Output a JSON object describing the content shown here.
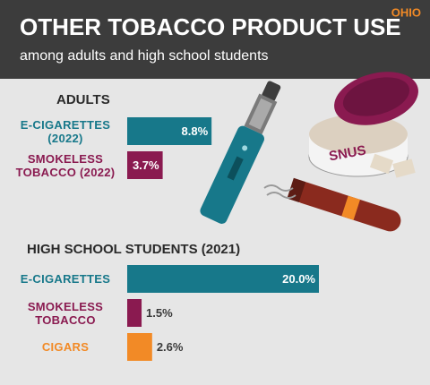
{
  "header": {
    "title": "OTHER TOBACCO PRODUCT USE",
    "subtitle": "among adults and high school students",
    "region": "OHIO"
  },
  "illustration": {
    "can_label": "SNUS"
  },
  "chart_data": [
    {
      "type": "bar",
      "orientation": "horizontal",
      "title": "ADULTS",
      "categories": [
        "E-CIGARETTES (2022)",
        "SMOKELESS TOBACCO (2022)"
      ],
      "values": [
        8.8,
        3.7
      ],
      "value_labels": [
        "8.8%",
        "3.7%"
      ],
      "colors": [
        "#17788a",
        "#8a1a50"
      ]
    },
    {
      "type": "bar",
      "orientation": "horizontal",
      "title": "HIGH SCHOOL STUDENTS (2021)",
      "categories": [
        "E-CIGARETTES",
        "SMOKELESS TOBACCO",
        "CIGARS"
      ],
      "values": [
        20.0,
        1.5,
        2.6
      ],
      "value_labels": [
        "20.0%",
        "1.5%",
        "2.6%"
      ],
      "colors": [
        "#17788a",
        "#8a1a50",
        "#f28a26"
      ]
    }
  ]
}
